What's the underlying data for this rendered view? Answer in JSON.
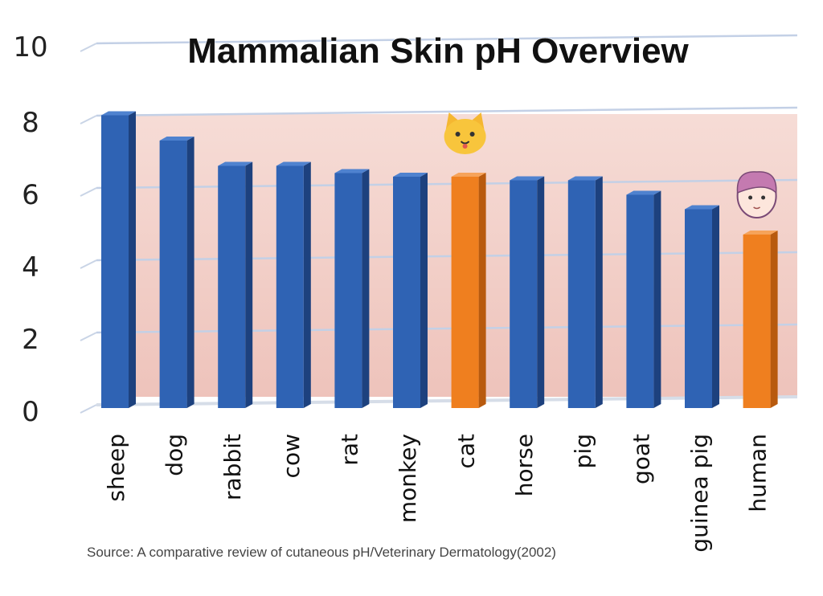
{
  "chart_data": {
    "type": "bar",
    "title": "Mammalian Skin pH Overview",
    "categories": [
      "sheep",
      "dog",
      "rabbit",
      "cow",
      "rat",
      "monkey",
      "cat",
      "horse",
      "pig",
      "goat",
      "guinea pig",
      "human"
    ],
    "values": [
      8.1,
      7.4,
      6.7,
      6.7,
      6.5,
      6.4,
      6.4,
      6.3,
      6.3,
      5.9,
      5.5,
      4.8
    ],
    "highlighted": [
      "cat",
      "human"
    ],
    "ylim": [
      0,
      10
    ],
    "yticks": [
      0,
      2,
      4,
      6,
      8,
      10
    ],
    "xlabel": "",
    "ylabel": "",
    "grid": true,
    "colors": {
      "default": "#2f63b4",
      "highlight": "#ef7f1f",
      "background": "#f3d2cc"
    },
    "icons": {
      "cat": "cat-face-icon",
      "human": "human-face-icon"
    },
    "source": "Source: A comparative review of cutaneous pH/Veterinary Dermatology(2002)"
  }
}
